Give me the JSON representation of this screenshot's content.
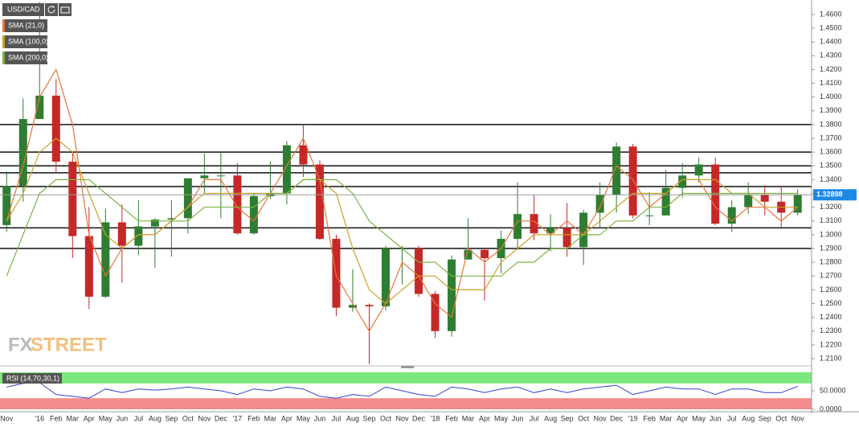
{
  "chart_data": [
    {
      "type": "candlestick",
      "title": "USD/CAD",
      "categories": [
        "Nov",
        null,
        "'16",
        "Feb",
        "Mar",
        "Apr",
        "May",
        "Jun",
        "Jul",
        "Aug",
        "Sep",
        "Oct",
        "Nov",
        "Dec",
        "'17",
        "Feb",
        "Mar",
        "Apr",
        "May",
        "Jun",
        "Jul",
        "Aug",
        "Sep",
        "Oct",
        "Nov",
        "Dec",
        "'18",
        "Feb",
        "Mar",
        "Apr",
        "May",
        "Jun",
        "Jul",
        "Aug",
        "Sep",
        "Oct",
        "Nov",
        "Dec",
        "'19",
        "Feb",
        "Mar",
        "Apr",
        "May",
        "Jun",
        "Jul",
        "Aug",
        "Sep",
        "Oct",
        "Nov"
      ],
      "open": [
        1.307,
        1.3355,
        1.384,
        1.401,
        1.353,
        1.299,
        1.255,
        1.309,
        1.292,
        1.306,
        1.311,
        1.312,
        1.341,
        1.343,
        1.343,
        1.301,
        1.328,
        1.33,
        1.365,
        1.351,
        1.297,
        1.247,
        1.249,
        1.248,
        1.29,
        1.29,
        1.257,
        1.23,
        1.282,
        1.289,
        1.283,
        1.297,
        1.315,
        1.301,
        1.305,
        1.291,
        1.316,
        1.329,
        1.364,
        1.314,
        1.314,
        1.334,
        1.343,
        1.351,
        1.308,
        1.32,
        1.329,
        1.324,
        1.316
      ],
      "high": [
        1.346,
        1.399,
        1.469,
        1.413,
        1.36,
        1.32,
        1.319,
        1.322,
        1.325,
        1.312,
        1.325,
        1.34,
        1.359,
        1.36,
        1.352,
        1.33,
        1.353,
        1.368,
        1.38,
        1.354,
        1.3,
        1.275,
        1.25,
        1.292,
        1.292,
        1.292,
        1.259,
        1.285,
        1.312,
        1.29,
        1.303,
        1.338,
        1.329,
        1.315,
        1.323,
        1.318,
        1.338,
        1.367,
        1.366,
        1.331,
        1.347,
        1.352,
        1.356,
        1.356,
        1.325,
        1.338,
        1.336,
        1.335,
        1.333
      ],
      "low": [
        1.302,
        1.324,
        1.384,
        1.345,
        1.283,
        1.246,
        1.254,
        1.265,
        1.285,
        1.276,
        1.284,
        1.301,
        1.33,
        1.312,
        1.3,
        1.3,
        1.326,
        1.322,
        1.342,
        1.296,
        1.241,
        1.244,
        1.206,
        1.245,
        1.264,
        1.255,
        1.225,
        1.226,
        1.282,
        1.252,
        1.272,
        1.289,
        1.296,
        1.288,
        1.284,
        1.278,
        1.305,
        1.316,
        1.312,
        1.307,
        1.314,
        1.327,
        1.338,
        1.307,
        1.302,
        1.315,
        1.314,
        1.305,
        1.314
      ],
      "close": [
        1.3355,
        1.384,
        1.401,
        1.353,
        1.299,
        1.255,
        1.309,
        1.292,
        1.306,
        1.311,
        1.312,
        1.341,
        1.343,
        1.343,
        1.301,
        1.328,
        1.33,
        1.365,
        1.351,
        1.297,
        1.247,
        1.249,
        1.248,
        1.29,
        1.29,
        1.257,
        1.23,
        1.282,
        1.289,
        1.283,
        1.297,
        1.315,
        1.301,
        1.305,
        1.291,
        1.316,
        1.329,
        1.364,
        1.314,
        1.314,
        1.334,
        1.343,
        1.351,
        1.308,
        1.32,
        1.329,
        1.324,
        1.316,
        1.329
      ],
      "up_color": "#2e7d32",
      "down_color": "#c62828",
      "series": [
        {
          "name": "SMA (21,0)",
          "color": "#e8743b",
          "values": [
            1.31,
            1.35,
            1.4,
            1.42,
            1.38,
            1.3,
            1.27,
            1.29,
            1.3,
            1.3,
            1.31,
            1.32,
            1.34,
            1.34,
            1.32,
            1.31,
            1.33,
            1.35,
            1.37,
            1.34,
            1.27,
            1.25,
            1.23,
            1.25,
            1.28,
            1.27,
            1.25,
            1.24,
            1.29,
            1.28,
            1.29,
            1.31,
            1.31,
            1.3,
            1.31,
            1.3,
            1.32,
            1.35,
            1.34,
            1.32,
            1.33,
            1.34,
            1.34,
            1.32,
            1.31,
            1.32,
            1.32,
            1.31,
            1.32
          ]
        },
        {
          "name": "SMA (100,0)",
          "color": "#c9a227",
          "values": [
            1.31,
            1.33,
            1.36,
            1.37,
            1.36,
            1.33,
            1.3,
            1.29,
            1.3,
            1.3,
            1.31,
            1.32,
            1.33,
            1.33,
            1.33,
            1.33,
            1.33,
            1.33,
            1.34,
            1.34,
            1.33,
            1.29,
            1.26,
            1.25,
            1.26,
            1.27,
            1.27,
            1.26,
            1.26,
            1.26,
            1.28,
            1.29,
            1.3,
            1.3,
            1.3,
            1.3,
            1.31,
            1.32,
            1.33,
            1.33,
            1.33,
            1.34,
            1.34,
            1.34,
            1.33,
            1.33,
            1.32,
            1.32,
            1.32
          ]
        },
        {
          "name": "SMA (200,0)",
          "color": "#7cb342",
          "values": [
            1.27,
            1.3,
            1.33,
            1.34,
            1.34,
            1.34,
            1.33,
            1.32,
            1.31,
            1.31,
            1.31,
            1.31,
            1.32,
            1.32,
            1.32,
            1.32,
            1.33,
            1.33,
            1.34,
            1.34,
            1.34,
            1.33,
            1.31,
            1.3,
            1.29,
            1.28,
            1.28,
            1.27,
            1.27,
            1.27,
            1.27,
            1.28,
            1.28,
            1.29,
            1.29,
            1.3,
            1.3,
            1.31,
            1.31,
            1.32,
            1.32,
            1.33,
            1.33,
            1.33,
            1.33,
            1.33,
            1.33,
            1.33,
            1.33
          ]
        }
      ],
      "ylim": [
        1.2065,
        1.4693
      ],
      "yticks": [
        {
          "value": 1.46,
          "label": "1.4600"
        },
        {
          "value": 1.45,
          "label": "1.4500"
        },
        {
          "value": 1.44,
          "label": "1.4400"
        },
        {
          "value": 1.43,
          "label": "1.4300"
        },
        {
          "value": 1.42,
          "label": "1.4200"
        },
        {
          "value": 1.41,
          "label": "1.4100"
        },
        {
          "value": 1.4,
          "label": "1.4000"
        },
        {
          "value": 1.39,
          "label": "1.3900"
        },
        {
          "value": 1.38,
          "label": "1.3800"
        },
        {
          "value": 1.37,
          "label": "1.3700"
        },
        {
          "value": 1.36,
          "label": "1.3600"
        },
        {
          "value": 1.35,
          "label": "1.3500"
        },
        {
          "value": 1.34,
          "label": "1.3400"
        },
        {
          "value": 1.33,
          "label": "1.3300"
        },
        {
          "value": 1.32,
          "label": "1.3200"
        },
        {
          "value": 1.31,
          "label": "1.3100"
        },
        {
          "value": 1.3,
          "label": "1.3000"
        },
        {
          "value": 1.29,
          "label": "1.2900"
        },
        {
          "value": 1.28,
          "label": "1.2800"
        },
        {
          "value": 1.27,
          "label": "1.2700"
        },
        {
          "value": 1.26,
          "label": "1.2600"
        },
        {
          "value": 1.25,
          "label": "1.2500"
        },
        {
          "value": 1.24,
          "label": "1.2400"
        },
        {
          "value": 1.23,
          "label": "1.2300"
        },
        {
          "value": 1.22,
          "label": "1.2200"
        },
        {
          "value": 1.21,
          "label": "1.2100"
        }
      ],
      "levels": [
        1.38,
        1.36,
        1.35,
        1.345,
        1.335,
        1.305,
        1.29
      ],
      "level_color": "#111111",
      "last_price": 1.32898,
      "last_price_color": "#1e88e5",
      "watermark": [
        "FX",
        "STREET"
      ]
    },
    {
      "type": "line",
      "series": [
        {
          "name": "RSI (14,70,30,1)",
          "color": "#3344cc",
          "values": [
            60,
            70,
            72,
            40,
            35,
            30,
            55,
            45,
            55,
            52,
            55,
            60,
            55,
            50,
            40,
            55,
            50,
            60,
            55,
            35,
            30,
            40,
            35,
            60,
            50,
            40,
            35,
            60,
            55,
            45,
            55,
            60,
            45,
            55,
            45,
            55,
            60,
            65,
            40,
            50,
            60,
            55,
            55,
            40,
            55,
            55,
            45,
            45,
            62
          ]
        }
      ],
      "ylim": [
        0,
        100
      ],
      "yticks": [
        {
          "value": 0,
          "label": "0.0000"
        },
        {
          "value": 50,
          "label": "50.0000"
        }
      ],
      "overbought": 70,
      "oversold": 30,
      "overbought_color": "#7be87b",
      "oversold_color": "#f28b8b"
    }
  ]
}
